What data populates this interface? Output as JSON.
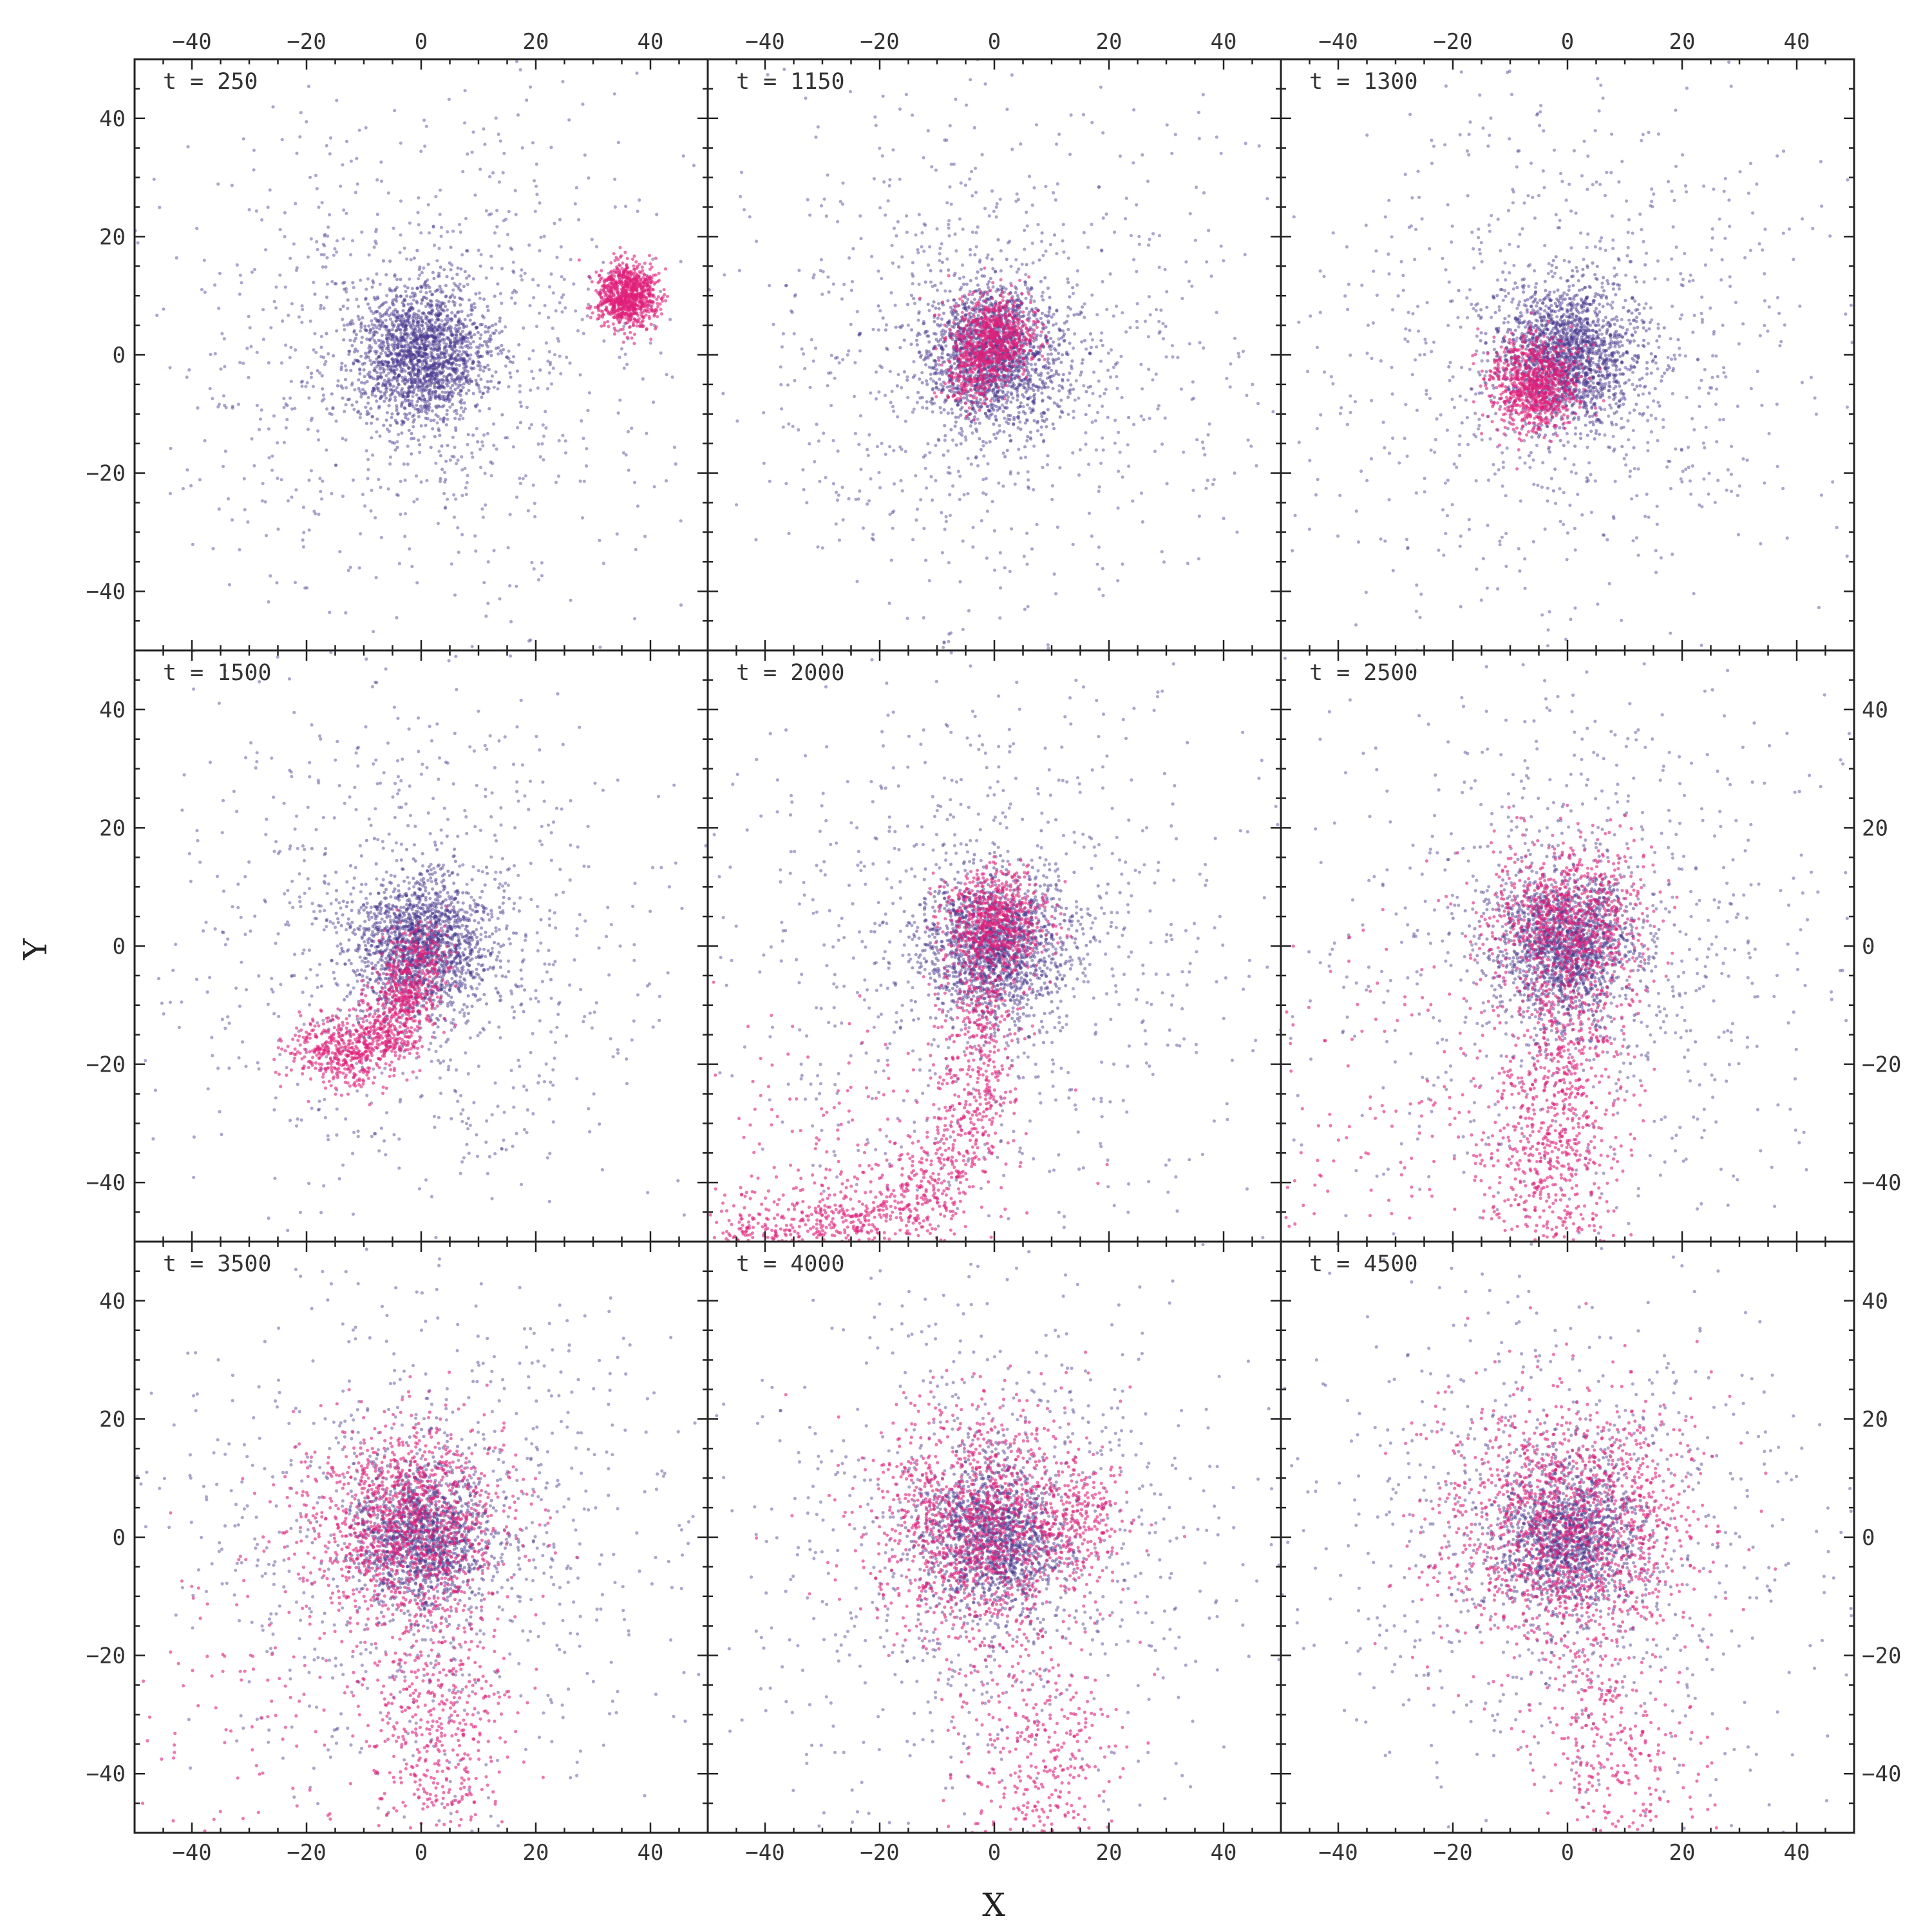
{
  "figure": {
    "xlabel": "X",
    "ylabel": "Y"
  },
  "chart_data": {
    "type": "scatter",
    "layout": "3x3 grid of panels, shared axes",
    "xlim": [
      -50,
      50
    ],
    "ylim": [
      -50,
      50
    ],
    "xticks": [
      -40,
      -20,
      0,
      20,
      40
    ],
    "yticks": [
      -40,
      -20,
      0,
      20,
      40
    ],
    "xtick_labels": [
      "−40",
      "−20",
      "0",
      "20",
      "40"
    ],
    "ytick_labels": [
      "−40",
      "−20",
      "0",
      "20",
      "40"
    ],
    "grid": false,
    "colors": {
      "host": "#4b3a8f",
      "satellite": "#e0207a"
    },
    "panels": [
      {
        "label": "t = 250",
        "host": [
          {
            "x": 0,
            "y": 0,
            "sigma": 6,
            "n": 1800
          },
          {
            "x": 0,
            "y": 0,
            "sigma": 22,
            "n": 900
          }
        ],
        "satellite": [
          {
            "x": 36,
            "y": 10,
            "sigma": 2.6,
            "n": 900
          }
        ]
      },
      {
        "label": "t = 1150",
        "host": [
          {
            "x": 0,
            "y": 0,
            "sigma": 6,
            "n": 1700
          },
          {
            "x": 0,
            "y": 0,
            "sigma": 22,
            "n": 900
          }
        ],
        "satellite": [
          {
            "x": 0,
            "y": 3,
            "sigma": 3.5,
            "n": 700
          },
          {
            "x": -4,
            "y": -4,
            "sigma": 2.5,
            "n": 150
          }
        ]
      },
      {
        "label": "t = 1300",
        "host": [
          {
            "x": 0,
            "y": 0,
            "sigma": 6,
            "n": 1700
          },
          {
            "x": 0,
            "y": 0,
            "sigma": 22,
            "n": 900
          }
        ],
        "satellite": [
          {
            "x": -6,
            "y": -5,
            "sigma": 4,
            "n": 850
          }
        ]
      },
      {
        "label": "t = 1500",
        "host": [
          {
            "x": 0,
            "y": 0,
            "sigma": 6,
            "n": 1600
          },
          {
            "x": 0,
            "y": 0,
            "sigma": 22,
            "n": 900
          }
        ],
        "satellite_path": [
          [
            0,
            0
          ],
          [
            -3,
            -10
          ],
          [
            -8,
            -17
          ],
          [
            -15,
            -18
          ],
          [
            -20,
            -17
          ]
        ],
        "satellite_path_sigma": 3,
        "satellite_path_n": 1100
      },
      {
        "label": "t = 2000",
        "host": [
          {
            "x": 0,
            "y": 0,
            "sigma": 6,
            "n": 1500
          },
          {
            "x": 0,
            "y": 0,
            "sigma": 22,
            "n": 900
          }
        ],
        "satellite": [
          {
            "x": 0,
            "y": 4,
            "sigma": 4.5,
            "n": 700
          },
          {
            "x": -25,
            "y": -40,
            "sigma": 14,
            "n": 250
          }
        ],
        "satellite_path": [
          [
            -2,
            -5
          ],
          [
            -3,
            -20
          ],
          [
            -6,
            -35
          ],
          [
            -15,
            -45
          ],
          [
            -30,
            -48
          ],
          [
            -48,
            -49
          ]
        ],
        "satellite_path_sigma": 3.5,
        "satellite_path_n": 1100
      },
      {
        "label": "t = 2500",
        "host": [
          {
            "x": 0,
            "y": 0,
            "sigma": 6,
            "n": 1500
          },
          {
            "x": 0,
            "y": 0,
            "sigma": 22,
            "n": 900
          }
        ],
        "satellite": [
          {
            "x": 0,
            "y": 4,
            "sigma": 7,
            "n": 900
          },
          {
            "x": -30,
            "y": -30,
            "sigma": 15,
            "n": 150
          }
        ],
        "satellite_path": [
          [
            0,
            -10
          ],
          [
            -2,
            -25
          ],
          [
            -3,
            -40
          ],
          [
            -4,
            -49
          ]
        ],
        "satellite_path_sigma": 6,
        "satellite_path_n": 800
      },
      {
        "label": "t = 3500",
        "host": [
          {
            "x": 0,
            "y": 0,
            "sigma": 6,
            "n": 1300
          },
          {
            "x": 0,
            "y": 0,
            "sigma": 22,
            "n": 900
          }
        ],
        "satellite": [
          {
            "x": -3,
            "y": 2,
            "sigma": 9,
            "n": 1300
          },
          {
            "x": -30,
            "y": -30,
            "sigma": 15,
            "n": 120
          }
        ],
        "satellite_path": [
          [
            2,
            -18
          ],
          [
            3,
            -30
          ],
          [
            3,
            -48
          ]
        ],
        "satellite_path_sigma": 6,
        "satellite_path_n": 450
      },
      {
        "label": "t = 4000",
        "host": [
          {
            "x": 0,
            "y": 0,
            "sigma": 6,
            "n": 1300
          },
          {
            "x": 0,
            "y": 0,
            "sigma": 22,
            "n": 900
          }
        ],
        "satellite": [
          {
            "x": -2,
            "y": 2,
            "sigma": 10,
            "n": 1400
          },
          {
            "x": 15,
            "y": 3,
            "sigma": 4,
            "n": 150
          }
        ],
        "satellite_path": [
          [
            5,
            -25
          ],
          [
            8,
            -38
          ],
          [
            10,
            -48
          ]
        ],
        "satellite_path_sigma": 7,
        "satellite_path_n": 350
      },
      {
        "label": "t = 4500",
        "host": [
          {
            "x": 0,
            "y": 0,
            "sigma": 6,
            "n": 1300
          },
          {
            "x": 0,
            "y": 0,
            "sigma": 22,
            "n": 900
          }
        ],
        "satellite": [
          {
            "x": 0,
            "y": 1,
            "sigma": 11,
            "n": 1500
          }
        ],
        "satellite_path": [
          [
            5,
            -25
          ],
          [
            9,
            -38
          ],
          [
            12,
            -48
          ]
        ],
        "satellite_path_sigma": 7,
        "satellite_path_n": 300
      }
    ]
  }
}
